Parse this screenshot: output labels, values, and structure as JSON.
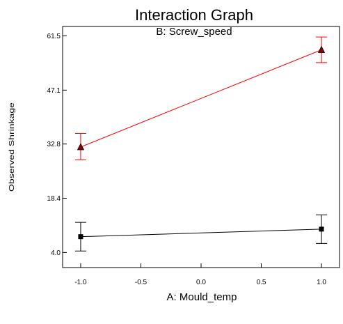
{
  "chart_data": {
    "type": "line",
    "title": "Interaction Graph",
    "subtitle": "B: Screw_speed",
    "xlabel": "A: Mould_temp",
    "ylabel": "Observed Shrinkage",
    "x": [
      -1.0,
      1.0
    ],
    "x_ticks": [
      "-1.0",
      "-0.5",
      "0.0",
      "0.5",
      "1.0"
    ],
    "x_tick_values": [
      -1.0,
      -0.5,
      0.0,
      0.5,
      1.0
    ],
    "y_ticks": [
      "4.0",
      "18.4",
      "32.8",
      "47.1",
      "61.5"
    ],
    "y_tick_values": [
      4.0,
      18.4,
      32.8,
      47.1,
      61.5
    ],
    "xlim": [
      -1.15,
      1.15
    ],
    "ylim": [
      0,
      64
    ],
    "grid": false,
    "series": [
      {
        "values": [
          8.2,
          10.2
        ],
        "error_low": [
          4.4,
          6.4
        ],
        "error_high": [
          12.0,
          14.0
        ],
        "color": "#000000",
        "marker": "square"
      },
      {
        "values": [
          32.0,
          57.8
        ],
        "error_low": [
          28.6,
          54.4
        ],
        "error_high": [
          35.6,
          61.2
        ],
        "color": "#ff0000",
        "marker": "triangle"
      }
    ]
  }
}
